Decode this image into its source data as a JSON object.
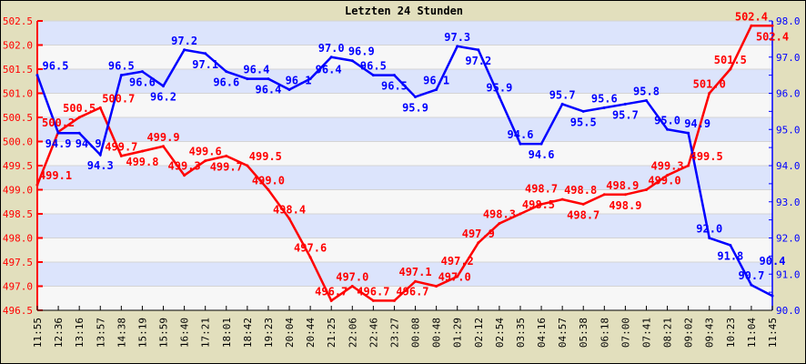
{
  "chart_data": {
    "type": "line",
    "title": "Letzten 24 Stunden",
    "categories": [
      "11:55",
      "12:36",
      "13:16",
      "13:57",
      "14:38",
      "15:19",
      "15:59",
      "16:40",
      "17:21",
      "18:01",
      "18:42",
      "19:23",
      "20:04",
      "20:44",
      "21:25",
      "22:06",
      "22:46",
      "23:27",
      "00:08",
      "00:48",
      "01:29",
      "02:12",
      "02:54",
      "03:35",
      "04:16",
      "04:57",
      "05:38",
      "06:18",
      "07:00",
      "07:41",
      "08:21",
      "09:02",
      "09:43",
      "10:23",
      "11:04",
      "11:45"
    ],
    "series": [
      {
        "axis": "left",
        "color": "#ff0000",
        "values": [
          499.1,
          500.2,
          500.5,
          500.7,
          499.7,
          499.8,
          499.9,
          499.3,
          499.6,
          499.7,
          499.5,
          499.0,
          498.4,
          497.6,
          496.7,
          497.0,
          496.7,
          496.7,
          497.1,
          497.0,
          497.2,
          497.9,
          498.3,
          498.5,
          498.7,
          498.8,
          498.7,
          498.9,
          498.9,
          499.0,
          499.3,
          499.5,
          501.0,
          501.5,
          502.4,
          502.4
        ]
      },
      {
        "axis": "right",
        "color": "#0000ff",
        "values": [
          96.5,
          94.9,
          94.9,
          94.3,
          96.5,
          96.6,
          96.2,
          97.2,
          97.1,
          96.6,
          96.4,
          96.4,
          96.1,
          96.4,
          97.0,
          96.9,
          96.5,
          96.5,
          95.9,
          96.1,
          97.3,
          97.2,
          95.9,
          94.6,
          94.6,
          95.7,
          95.5,
          95.6,
          95.7,
          95.8,
          95.0,
          94.9,
          92.0,
          91.8,
          90.7,
          90.4
        ]
      }
    ],
    "left_axis": {
      "ylim": [
        496.5,
        502.5
      ],
      "ticks": [
        "496.5",
        "497.0",
        "497.5",
        "498.0",
        "498.5",
        "499.0",
        "499.5",
        "500.0",
        "500.5",
        "501.0",
        "501.5",
        "502.0",
        "502.5"
      ],
      "color": "#ff0000"
    },
    "right_axis": {
      "ylim": [
        90,
        98
      ],
      "ticks": [
        "90.0",
        "91.0",
        "92.0",
        "93.0",
        "94.0",
        "95.0",
        "96.0",
        "97.0",
        "98.0"
      ],
      "color": "#0000ff"
    },
    "grid": "horizontal bands",
    "colors": {
      "background": "#e2dfbd",
      "band_a": "#dce4fc",
      "band_b": "#f7f7f7"
    }
  }
}
